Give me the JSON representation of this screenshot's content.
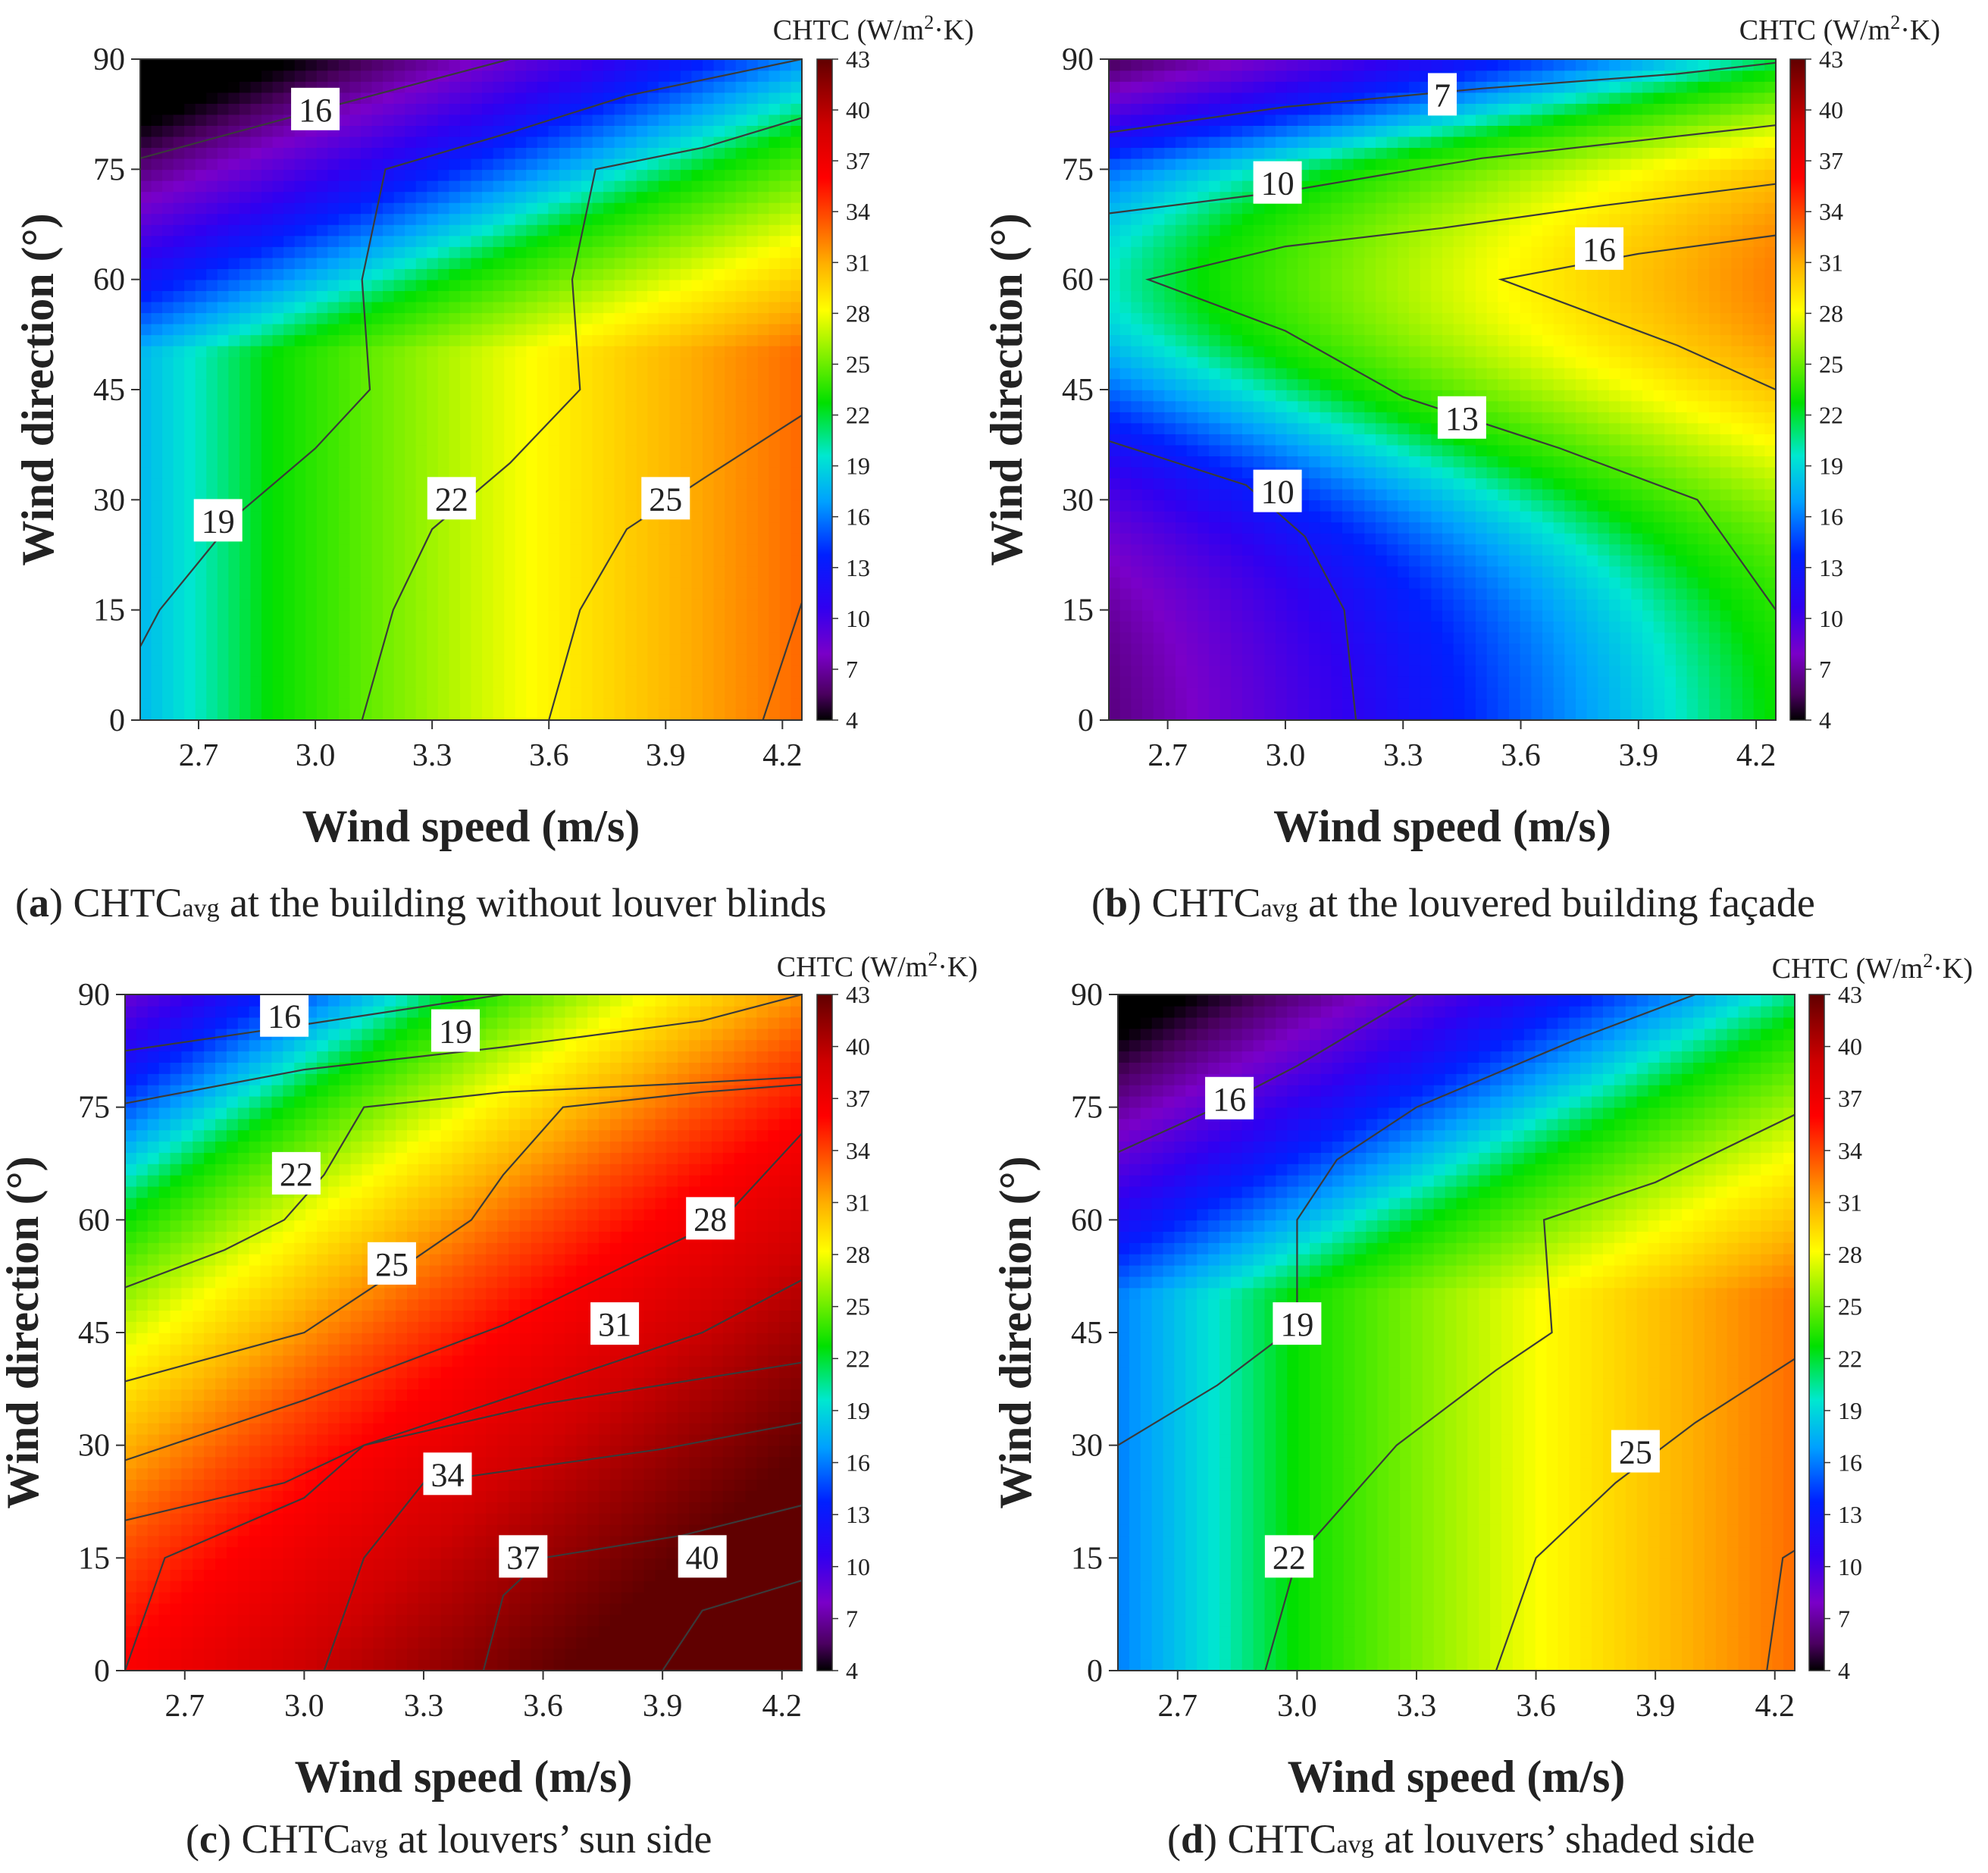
{
  "figure": {
    "colorbar_title_prefix": "CHTC (W/m",
    "colorbar_title_sup": "2",
    "colorbar_title_suffix": "·K)"
  },
  "captions": [
    {
      "letter": "a",
      "pre": "CHTC",
      "sub": "avg",
      "post": " at the building without louver blinds"
    },
    {
      "letter": "b",
      "pre": "CHTC",
      "sub": "avg",
      "post": " at the louvered building façade"
    },
    {
      "letter": "c",
      "pre": "CHTC",
      "sub": "avg",
      "post": " at louvers’ sun side"
    },
    {
      "letter": "d",
      "pre": "CHTC",
      "sub": "avg",
      "post": " at louvers’ shaded side"
    }
  ],
  "chart_data": [
    {
      "id": "a",
      "type": "heatmap",
      "xlabel": "Wind speed (m/s)",
      "ylabel": "Wind direction (°)",
      "xlim": [
        2.55,
        4.25
      ],
      "ylim": [
        0,
        90
      ],
      "xticks": [
        "2.7",
        "3.0",
        "3.3",
        "3.6",
        "3.9",
        "4.2"
      ],
      "yticks": [
        "0",
        "15",
        "30",
        "45",
        "60",
        "75",
        "90"
      ],
      "colorbar_ticks": [
        "4",
        "7",
        "10",
        "13",
        "16",
        "19",
        "22",
        "25",
        "28",
        "31",
        "34",
        "37",
        "40",
        "43"
      ],
      "crange": [
        4,
        43
      ],
      "contour_labels": [
        {
          "text": "16",
          "x": 3.0,
          "y": 83
        },
        {
          "text": "19",
          "x": 2.75,
          "y": 27
        },
        {
          "text": "22",
          "x": 3.35,
          "y": 30
        },
        {
          "text": "25",
          "x": 3.9,
          "y": 30
        }
      ],
      "contours": [
        {
          "level": 16,
          "points": [
            [
              2.55,
              76.5
            ],
            [
              3.0,
              83
            ],
            [
              3.5,
              90
            ]
          ]
        },
        {
          "level": 19,
          "points": [
            [
              2.55,
              10
            ],
            [
              2.6,
              15
            ],
            [
              2.8,
              28
            ],
            [
              3.0,
              37
            ],
            [
              3.14,
              45
            ],
            [
              3.12,
              60
            ],
            [
              3.18,
              75
            ],
            [
              3.5,
              80
            ],
            [
              3.8,
              85
            ],
            [
              4.25,
              90
            ]
          ]
        },
        {
          "level": 22,
          "points": [
            [
              3.12,
              0
            ],
            [
              3.2,
              15
            ],
            [
              3.3,
              26
            ],
            [
              3.5,
              35
            ],
            [
              3.68,
              45
            ],
            [
              3.66,
              60
            ],
            [
              3.72,
              75
            ],
            [
              4.0,
              78
            ],
            [
              4.25,
              82
            ]
          ]
        },
        {
          "level": 25,
          "points": [
            [
              3.6,
              0
            ],
            [
              3.68,
              15
            ],
            [
              3.8,
              26
            ],
            [
              4.0,
              33
            ],
            [
              4.25,
              41.5
            ]
          ]
        },
        {
          "level": 28,
          "points": [
            [
              4.15,
              0
            ],
            [
              4.25,
              16
            ]
          ]
        }
      ],
      "value_field": {
        "base": 14.5,
        "speed_coef": 7.5,
        "dir_max": 50,
        "dir_scale": 2.6,
        "dir_coef": 5.2
      }
    },
    {
      "id": "b",
      "type": "heatmap",
      "xlabel": "Wind speed (m/s)",
      "ylabel": "Wind direction (°)",
      "xlim": [
        2.55,
        4.25
      ],
      "ylim": [
        0,
        90
      ],
      "xticks": [
        "2.7",
        "3.0",
        "3.3",
        "3.6",
        "3.9",
        "4.2"
      ],
      "yticks": [
        "0",
        "15",
        "30",
        "45",
        "60",
        "75",
        "90"
      ],
      "colorbar_ticks": [
        "4",
        "7",
        "10",
        "13",
        "16",
        "19",
        "22",
        "25",
        "28",
        "31",
        "34",
        "37",
        "40",
        "43"
      ],
      "crange": [
        4,
        43
      ],
      "contour_labels": [
        {
          "text": "7",
          "x": 3.4,
          "y": 85
        },
        {
          "text": "10",
          "x": 2.98,
          "y": 73
        },
        {
          "text": "16",
          "x": 3.8,
          "y": 64
        },
        {
          "text": "13",
          "x": 3.45,
          "y": 41
        },
        {
          "text": "10",
          "x": 2.98,
          "y": 31
        }
      ],
      "contours": [
        {
          "level": 7,
          "points": [
            [
              2.55,
              80
            ],
            [
              3.0,
              83.5
            ],
            [
              3.5,
              86
            ],
            [
              4.0,
              88
            ],
            [
              4.25,
              89.5
            ]
          ]
        },
        {
          "level": 10,
          "points": [
            [
              2.55,
              69
            ],
            [
              3.0,
              72
            ],
            [
              3.5,
              76.5
            ],
            [
              4.0,
              79.5
            ],
            [
              4.25,
              81
            ]
          ]
        },
        {
          "level": 13,
          "points": [
            [
              4.25,
              73
            ],
            [
              3.8,
              70
            ],
            [
              3.4,
              67
            ],
            [
              3.0,
              64.5
            ],
            [
              2.65,
              60
            ],
            [
              3.0,
              53
            ],
            [
              3.3,
              44
            ],
            [
              3.7,
              37
            ],
            [
              4.05,
              30
            ],
            [
              4.25,
              15
            ]
          ]
        },
        {
          "level": 16,
          "points": [
            [
              4.25,
              66
            ],
            [
              3.9,
              63.5
            ],
            [
              3.55,
              60
            ],
            [
              4.0,
              51
            ],
            [
              4.25,
              45
            ]
          ]
        },
        {
          "level": 10,
          "points": [
            [
              2.55,
              38
            ],
            [
              2.9,
              32
            ],
            [
              3.05,
              25
            ],
            [
              3.15,
              15
            ],
            [
              3.18,
              0
            ]
          ]
        }
      ],
      "value_field": {
        "special": "b"
      }
    },
    {
      "id": "c",
      "type": "heatmap",
      "xlabel": "Wind speed (m/s)",
      "ylabel": "Wind direction (°)",
      "xlim": [
        2.55,
        4.25
      ],
      "ylim": [
        0,
        90
      ],
      "xticks": [
        "2.7",
        "3.0",
        "3.3",
        "3.6",
        "3.9",
        "4.2"
      ],
      "yticks": [
        "0",
        "15",
        "30",
        "45",
        "60",
        "75",
        "90"
      ],
      "colorbar_ticks": [
        "4",
        "7",
        "10",
        "13",
        "16",
        "19",
        "22",
        "25",
        "28",
        "31",
        "34",
        "37",
        "40",
        "43"
      ],
      "crange": [
        4,
        43
      ],
      "contour_labels": [
        {
          "text": "16",
          "x": 2.95,
          "y": 87
        },
        {
          "text": "19",
          "x": 3.38,
          "y": 85
        },
        {
          "text": "22",
          "x": 2.98,
          "y": 66
        },
        {
          "text": "25",
          "x": 3.22,
          "y": 54
        },
        {
          "text": "28",
          "x": 4.02,
          "y": 60
        },
        {
          "text": "31",
          "x": 3.78,
          "y": 46
        },
        {
          "text": "34",
          "x": 3.36,
          "y": 26
        },
        {
          "text": "37",
          "x": 3.55,
          "y": 15
        },
        {
          "text": "40",
          "x": 4.0,
          "y": 15
        }
      ],
      "contours": [
        {
          "level": 16,
          "points": [
            [
              2.55,
              82.5
            ],
            [
              3.0,
              86
            ],
            [
              3.5,
              90
            ]
          ]
        },
        {
          "level": 19,
          "points": [
            [
              2.55,
              75.5
            ],
            [
              3.0,
              80
            ],
            [
              3.5,
              83
            ],
            [
              4.0,
              86.5
            ],
            [
              4.25,
              90
            ]
          ]
        },
        {
          "level": 22,
          "points": [
            [
              2.55,
              51
            ],
            [
              2.8,
              56
            ],
            [
              2.95,
              60
            ],
            [
              3.05,
              66
            ],
            [
              3.15,
              75
            ],
            [
              3.5,
              77
            ],
            [
              3.9,
              78
            ],
            [
              4.25,
              79
            ]
          ]
        },
        {
          "level": 25,
          "points": [
            [
              2.55,
              38.5
            ],
            [
              3.0,
              45
            ],
            [
              3.2,
              52
            ],
            [
              3.42,
              60
            ],
            [
              3.5,
              66
            ],
            [
              3.65,
              75
            ],
            [
              4.0,
              77
            ],
            [
              4.25,
              78
            ]
          ]
        },
        {
          "level": 28,
          "points": [
            [
              2.55,
              28
            ],
            [
              3.0,
              36
            ],
            [
              3.5,
              46
            ],
            [
              3.85,
              55
            ],
            [
              4.05,
              60
            ],
            [
              4.25,
              71.5
            ]
          ]
        },
        {
          "level": 31,
          "points": [
            [
              2.55,
              20
            ],
            [
              2.95,
              25
            ],
            [
              3.15,
              30
            ],
            [
              3.55,
              37
            ],
            [
              4.0,
              45
            ],
            [
              4.25,
              52
            ]
          ]
        },
        {
          "level": 34,
          "points": [
            [
              2.55,
              0
            ],
            [
              2.65,
              15
            ],
            [
              3.0,
              23
            ],
            [
              3.15,
              30
            ],
            [
              3.6,
              35.5
            ],
            [
              4.25,
              41
            ]
          ]
        },
        {
          "level": 37,
          "points": [
            [
              3.05,
              0
            ],
            [
              3.15,
              15
            ],
            [
              3.3,
              25
            ],
            [
              3.9,
              29.5
            ],
            [
              4.25,
              33
            ]
          ]
        },
        {
          "level": 40,
          "points": [
            [
              3.45,
              0
            ],
            [
              3.5,
              10
            ],
            [
              3.6,
              15
            ],
            [
              3.95,
              18
            ],
            [
              4.25,
              22
            ]
          ]
        },
        {
          "level": 43,
          "points": [
            [
              3.9,
              0
            ],
            [
              4.0,
              8
            ],
            [
              4.25,
              12
            ]
          ]
        }
      ],
      "value_field": {
        "base": 31.5,
        "speed_coef": 10.5,
        "dir_max": 0,
        "dir_scale": 0,
        "dir_coef": 0,
        "dir_linear": -0.2,
        "dir_quad": -0.0022
      }
    },
    {
      "id": "d",
      "type": "heatmap",
      "xlabel": "Wind speed (m/s)",
      "ylabel": "Wind direction (°)",
      "xlim": [
        2.55,
        4.25
      ],
      "ylim": [
        0,
        90
      ],
      "xticks": [
        "2.7",
        "3.0",
        "3.3",
        "3.6",
        "3.9",
        "4.2"
      ],
      "yticks": [
        "0",
        "15",
        "30",
        "45",
        "60",
        "75",
        "90"
      ],
      "colorbar_ticks": [
        "4",
        "7",
        "10",
        "13",
        "16",
        "19",
        "22",
        "25",
        "28",
        "31",
        "34",
        "37",
        "40",
        "43"
      ],
      "crange": [
        4,
        43
      ],
      "contour_labels": [
        {
          "text": "16",
          "x": 2.83,
          "y": 76
        },
        {
          "text": "19",
          "x": 3.0,
          "y": 46
        },
        {
          "text": "22",
          "x": 2.98,
          "y": 15
        },
        {
          "text": "25",
          "x": 3.85,
          "y": 29
        }
      ],
      "contours": [
        {
          "level": 16,
          "points": [
            [
              2.55,
              69
            ],
            [
              2.8,
              75
            ],
            [
              3.0,
              80.5
            ],
            [
              3.3,
              90
            ]
          ]
        },
        {
          "level": 19,
          "points": [
            [
              2.55,
              30
            ],
            [
              2.8,
              38
            ],
            [
              3.0,
              46
            ],
            [
              3.0,
              60
            ],
            [
              3.1,
              68
            ],
            [
              3.3,
              75
            ],
            [
              3.7,
              84
            ],
            [
              4.0,
              90
            ]
          ]
        },
        {
          "level": 22,
          "points": [
            [
              2.92,
              0
            ],
            [
              3.0,
              15
            ],
            [
              3.25,
              30
            ],
            [
              3.5,
              40
            ],
            [
              3.64,
              45
            ],
            [
              3.62,
              60
            ],
            [
              3.9,
              65
            ],
            [
              4.25,
              74
            ]
          ]
        },
        {
          "level": 25,
          "points": [
            [
              3.5,
              0
            ],
            [
              3.6,
              15
            ],
            [
              3.8,
              25
            ],
            [
              4.0,
              33
            ],
            [
              4.25,
              41.5
            ]
          ]
        },
        {
          "level": 28,
          "points": [
            [
              4.18,
              0
            ],
            [
              4.22,
              15
            ],
            [
              4.25,
              16
            ]
          ]
        }
      ],
      "value_field": {
        "base": 13.5,
        "speed_coef": 8.0,
        "dir_max": 50,
        "dir_scale": 2.2,
        "dir_coef": 5.0
      }
    }
  ]
}
